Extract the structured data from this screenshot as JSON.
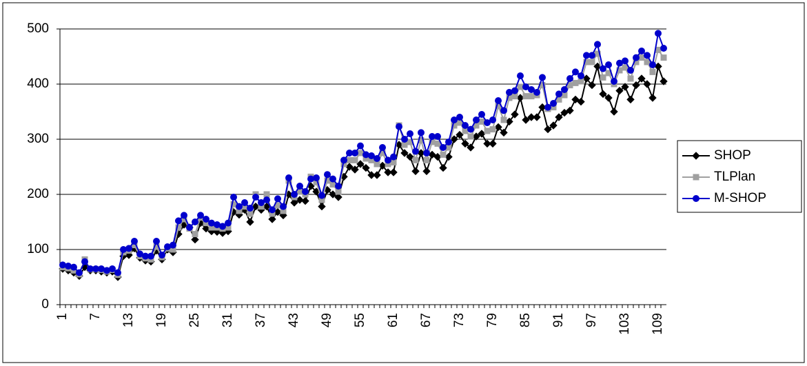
{
  "chart_data": {
    "type": "line",
    "categories": [
      1,
      null,
      null,
      null,
      null,
      null,
      7,
      null,
      null,
      null,
      null,
      null,
      13,
      null,
      null,
      null,
      null,
      null,
      19,
      null,
      null,
      null,
      null,
      null,
      25,
      null,
      null,
      null,
      null,
      null,
      31,
      null,
      null,
      null,
      null,
      null,
      37,
      null,
      null,
      null,
      null,
      null,
      43,
      null,
      null,
      null,
      null,
      null,
      49,
      null,
      null,
      null,
      null,
      null,
      55,
      null,
      null,
      null,
      null,
      null,
      61,
      null,
      null,
      null,
      null,
      null,
      67,
      null,
      null,
      null,
      null,
      null,
      73,
      null,
      null,
      null,
      null,
      null,
      79,
      null,
      null,
      null,
      null,
      null,
      85,
      null,
      null,
      null,
      null,
      null,
      91,
      null,
      null,
      null,
      null,
      null,
      97,
      null,
      null,
      null,
      null,
      null,
      103,
      null,
      null,
      null,
      null,
      null,
      109,
      null
    ],
    "series": [
      {
        "name": "SHOP",
        "color": "#000000",
        "marker": "diamond",
        "values": [
          65,
          62,
          58,
          52,
          68,
          62,
          62,
          60,
          58,
          60,
          50,
          88,
          90,
          102,
          85,
          80,
          78,
          98,
          82,
          100,
          95,
          128,
          145,
          140,
          118,
          148,
          138,
          133,
          132,
          130,
          133,
          168,
          163,
          172,
          150,
          178,
          172,
          178,
          155,
          168,
          162,
          200,
          185,
          190,
          188,
          215,
          205,
          178,
          208,
          200,
          195,
          232,
          250,
          245,
          255,
          248,
          235,
          235,
          252,
          240,
          240,
          290,
          275,
          268,
          242,
          275,
          242,
          272,
          268,
          248,
          268,
          300,
          308,
          292,
          285,
          305,
          310,
          292,
          292,
          322,
          312,
          332,
          345,
          375,
          335,
          340,
          340,
          358,
          318,
          325,
          340,
          348,
          352,
          372,
          368,
          410,
          398,
          432,
          382,
          375,
          350,
          388,
          395,
          372,
          398,
          410,
          400,
          375,
          432,
          405
        ]
      },
      {
        "name": "TLPlan",
        "color": "#a0a0a0",
        "marker": "square",
        "values": [
          68,
          66,
          62,
          55,
          82,
          64,
          64,
          63,
          60,
          63,
          54,
          95,
          98,
          108,
          88,
          84,
          82,
          105,
          86,
          102,
          100,
          140,
          155,
          138,
          128,
          158,
          148,
          140,
          140,
          138,
          140,
          182,
          170,
          178,
          165,
          200,
          178,
          200,
          165,
          180,
          170,
          225,
          195,
          205,
          200,
          232,
          222,
          190,
          225,
          218,
          205,
          255,
          262,
          262,
          275,
          265,
          262,
          255,
          275,
          255,
          258,
          325,
          290,
          295,
          262,
          298,
          262,
          295,
          292,
          272,
          285,
          325,
          330,
          315,
          305,
          325,
          332,
          315,
          318,
          360,
          335,
          375,
          378,
          395,
          378,
          378,
          380,
          398,
          355,
          358,
          372,
          380,
          398,
          402,
          405,
          440,
          440,
          455,
          412,
          420,
          400,
          425,
          430,
          410,
          440,
          448,
          440,
          422,
          462,
          448
        ]
      },
      {
        "name": "M-SHOP",
        "color": "#0000cc",
        "marker": "circle",
        "values": [
          72,
          70,
          68,
          58,
          78,
          65,
          65,
          65,
          62,
          65,
          58,
          100,
          102,
          115,
          92,
          88,
          88,
          115,
          90,
          105,
          108,
          152,
          162,
          140,
          150,
          162,
          155,
          148,
          145,
          142,
          148,
          195,
          178,
          185,
          175,
          195,
          185,
          190,
          172,
          192,
          178,
          230,
          200,
          215,
          205,
          228,
          230,
          198,
          236,
          228,
          215,
          262,
          275,
          275,
          288,
          272,
          270,
          265,
          285,
          262,
          268,
          323,
          300,
          310,
          278,
          312,
          275,
          305,
          305,
          285,
          295,
          335,
          340,
          325,
          318,
          335,
          345,
          330,
          335,
          370,
          352,
          385,
          388,
          415,
          395,
          390,
          385,
          412,
          358,
          365,
          382,
          390,
          410,
          422,
          415,
          452,
          452,
          472,
          428,
          435,
          405,
          438,
          442,
          425,
          448,
          460,
          452,
          435,
          492,
          465
        ]
      }
    ],
    "ylim": [
      0,
      500
    ],
    "yticks": [
      0,
      100,
      200,
      300,
      400,
      500
    ],
    "grid": true,
    "legend": "right"
  }
}
